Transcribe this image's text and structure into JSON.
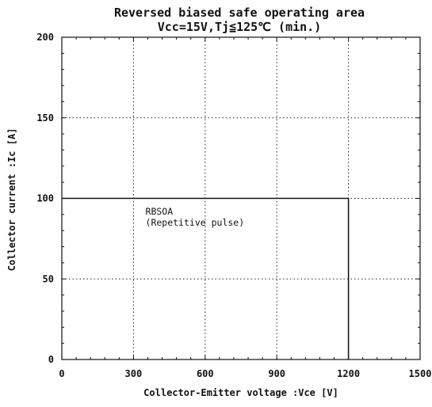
{
  "chart_data": {
    "type": "line",
    "title": "Reversed biased safe operating area",
    "subtitle": "Vcc=15V,Tj≦125℃ (min.)",
    "xlabel": "Collector-Emitter voltage :Vce [V]",
    "ylabel": "Collector current :Ic [A]",
    "xlim": [
      0,
      1500
    ],
    "ylim": [
      0,
      200
    ],
    "x_ticks": [
      0,
      300,
      600,
      900,
      1200,
      1500
    ],
    "y_ticks": [
      0,
      50,
      100,
      150,
      200
    ],
    "x_tick_labels": [
      "0",
      "300",
      "600",
      "900",
      "1200",
      "1500"
    ],
    "y_tick_labels": [
      "0",
      "50",
      "100",
      "150",
      "200"
    ],
    "grid": true,
    "series": [
      {
        "name": "RBSOA",
        "x": [
          0,
          1200,
          1200
        ],
        "y": [
          100,
          100,
          0
        ]
      }
    ],
    "annotations": [
      {
        "text": "RBSOA",
        "x": 390,
        "y": 90
      },
      {
        "text": "(Repetitive pulse)",
        "x": 390,
        "y": 83
      }
    ]
  }
}
